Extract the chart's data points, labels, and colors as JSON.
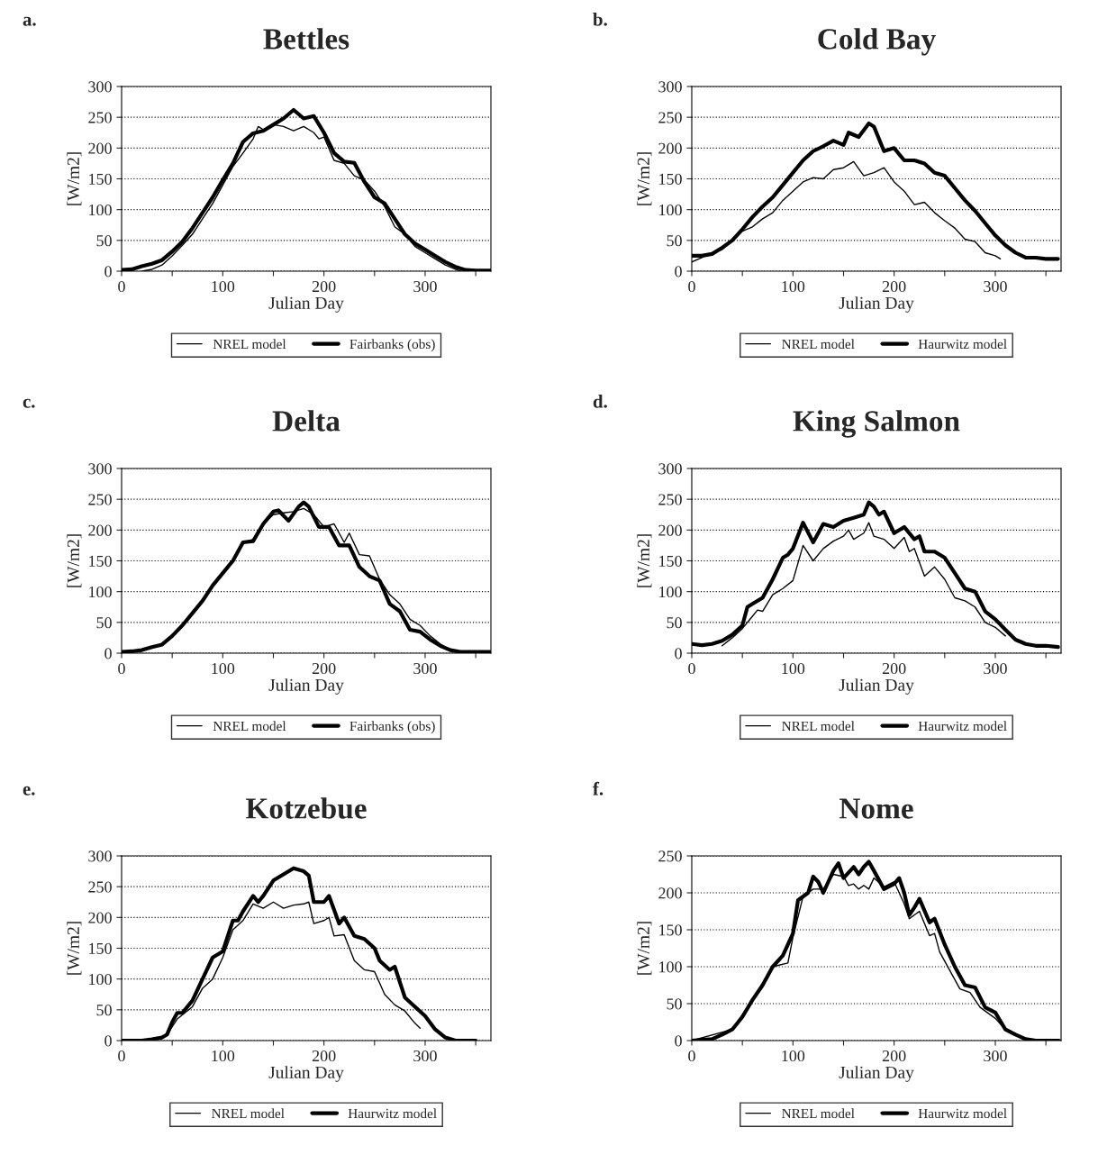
{
  "chart_data": [
    {
      "type": "line",
      "title": "Bettles",
      "annotations": [
        "a."
      ],
      "xlabel": "Julian Day",
      "ylabel": "[W/m2]",
      "xlim": [
        0,
        365
      ],
      "xticks": [
        0,
        {
          "value": 50,
          "label": null
        },
        100,
        {
          "value": 150,
          "label": null
        },
        200,
        {
          "value": 250,
          "label": null
        },
        300,
        {
          "value": 350,
          "label": null
        }
      ],
      "ylim": [
        0,
        300
      ],
      "yticks": [
        0,
        50,
        100,
        150,
        200,
        250,
        300
      ],
      "grid": "y",
      "legend": "bottom",
      "series": [
        {
          "name": "NREL model",
          "color": "#000000",
          "x": [
            20,
            30,
            40,
            50,
            60,
            70,
            80,
            90,
            100,
            110,
            120,
            130,
            135,
            140,
            150,
            160,
            170,
            180,
            190,
            195,
            200,
            210,
            220,
            230,
            240,
            250,
            260,
            270,
            280,
            290,
            300,
            310,
            320,
            330,
            335
          ],
          "values": [
            0,
            3,
            10,
            25,
            42,
            60,
            85,
            110,
            140,
            170,
            192,
            215,
            235,
            230,
            238,
            235,
            228,
            235,
            225,
            215,
            218,
            180,
            175,
            155,
            148,
            130,
            105,
            72,
            60,
            40,
            30,
            20,
            10,
            3,
            0
          ]
        },
        {
          "name": "Fairbanks (obs)",
          "color": "#000000",
          "x": [
            0,
            10,
            20,
            30,
            40,
            50,
            60,
            70,
            80,
            90,
            100,
            110,
            120,
            130,
            140,
            150,
            160,
            170,
            180,
            190,
            200,
            210,
            220,
            230,
            240,
            250,
            260,
            270,
            280,
            290,
            300,
            310,
            320,
            330,
            340,
            350,
            365
          ],
          "values": [
            2,
            3,
            8,
            12,
            18,
            32,
            48,
            70,
            95,
            120,
            148,
            175,
            210,
            224,
            228,
            238,
            248,
            262,
            248,
            252,
            225,
            192,
            178,
            176,
            145,
            120,
            110,
            85,
            60,
            45,
            35,
            25,
            15,
            7,
            2,
            1,
            1
          ]
        }
      ]
    },
    {
      "type": "line",
      "title": "Cold Bay",
      "annotations": [
        "b."
      ],
      "xlabel": "Julian Day",
      "ylabel": "[W/m2]",
      "xlim": [
        0,
        365
      ],
      "xticks": [
        0,
        {
          "value": 50,
          "label": null
        },
        100,
        {
          "value": 150,
          "label": null
        },
        200,
        {
          "value": 250,
          "label": null
        },
        300,
        {
          "value": 350,
          "label": null
        }
      ],
      "ylim": [
        0,
        300
      ],
      "yticks": [
        0,
        50,
        100,
        150,
        200,
        250,
        300
      ],
      "grid": "y",
      "legend": "bottom",
      "series": [
        {
          "name": "NREL model",
          "color": "#000000",
          "x": [
            0,
            10,
            20,
            30,
            40,
            50,
            60,
            70,
            80,
            90,
            100,
            110,
            120,
            130,
            140,
            150,
            160,
            170,
            180,
            190,
            200,
            210,
            220,
            230,
            240,
            250,
            260,
            270,
            280,
            290,
            300,
            305
          ],
          "values": [
            15,
            22,
            30,
            35,
            50,
            65,
            72,
            85,
            95,
            115,
            130,
            145,
            152,
            150,
            165,
            168,
            178,
            155,
            160,
            168,
            145,
            130,
            108,
            112,
            95,
            82,
            70,
            52,
            48,
            30,
            25,
            20
          ]
        },
        {
          "name": "Haurwitz model",
          "color": "#000000",
          "x": [
            0,
            10,
            20,
            30,
            40,
            50,
            60,
            70,
            80,
            90,
            100,
            110,
            120,
            130,
            140,
            150,
            155,
            165,
            175,
            180,
            190,
            200,
            210,
            220,
            230,
            240,
            250,
            260,
            270,
            280,
            290,
            300,
            310,
            320,
            330,
            340,
            350,
            362
          ],
          "values": [
            25,
            25,
            28,
            38,
            50,
            68,
            88,
            105,
            120,
            140,
            160,
            180,
            195,
            203,
            212,
            205,
            225,
            218,
            240,
            235,
            195,
            200,
            180,
            180,
            175,
            160,
            155,
            135,
            115,
            98,
            78,
            58,
            42,
            30,
            22,
            22,
            20,
            20
          ]
        }
      ]
    },
    {
      "type": "line",
      "title": "Delta",
      "annotations": [
        "c."
      ],
      "xlabel": "Julian Day",
      "ylabel": "[W/m2]",
      "xlim": [
        0,
        365
      ],
      "xticks": [
        0,
        {
          "value": 50,
          "label": null
        },
        100,
        {
          "value": 150,
          "label": null
        },
        200,
        {
          "value": 250,
          "label": null
        },
        300,
        {
          "value": 350,
          "label": null
        }
      ],
      "ylim": [
        0,
        300
      ],
      "yticks": [
        0,
        50,
        100,
        150,
        200,
        250,
        300
      ],
      "grid": "y",
      "legend": "bottom",
      "series": [
        {
          "name": "NREL model",
          "color": "#000000",
          "x": [
            0,
            20,
            30,
            40,
            50,
            60,
            70,
            80,
            90,
            100,
            110,
            120,
            130,
            140,
            150,
            160,
            170,
            180,
            190,
            200,
            210,
            220,
            225,
            235,
            245,
            255,
            265,
            275,
            285,
            295,
            305,
            315,
            325,
            335,
            364
          ],
          "values": [
            2,
            5,
            10,
            14,
            28,
            45,
            65,
            85,
            110,
            130,
            150,
            178,
            185,
            210,
            225,
            228,
            230,
            235,
            225,
            205,
            210,
            180,
            195,
            160,
            158,
            120,
            95,
            80,
            55,
            45,
            28,
            15,
            5,
            2,
            2
          ]
        },
        {
          "name": "Fairbanks (obs)",
          "color": "#000000",
          "x": [
            0,
            10,
            20,
            30,
            40,
            50,
            60,
            70,
            80,
            90,
            100,
            110,
            120,
            130,
            140,
            150,
            155,
            165,
            175,
            180,
            185,
            195,
            205,
            215,
            225,
            235,
            245,
            255,
            265,
            275,
            285,
            295,
            305,
            315,
            325,
            335,
            364
          ],
          "values": [
            2,
            3,
            5,
            10,
            14,
            28,
            45,
            65,
            85,
            110,
            130,
            150,
            180,
            182,
            210,
            230,
            232,
            215,
            238,
            245,
            238,
            205,
            205,
            175,
            175,
            140,
            125,
            118,
            80,
            68,
            38,
            35,
            22,
            12,
            5,
            2,
            2
          ]
        }
      ]
    },
    {
      "type": "line",
      "title": "King Salmon",
      "annotations": [
        "d."
      ],
      "xlabel": "Julian Day",
      "ylabel": "[W/m2]",
      "xlim": [
        0,
        365
      ],
      "xticks": [
        0,
        {
          "value": 50,
          "label": null
        },
        100,
        {
          "value": 150,
          "label": null
        },
        200,
        {
          "value": 250,
          "label": null
        },
        300,
        {
          "value": 350,
          "label": null
        }
      ],
      "ylim": [
        0,
        300
      ],
      "yticks": [
        0,
        50,
        100,
        150,
        200,
        250,
        300
      ],
      "grid": "y",
      "legend": "bottom",
      "series": [
        {
          "name": "NREL model",
          "color": "#000000",
          "x": [
            30,
            40,
            50,
            60,
            65,
            70,
            80,
            90,
            100,
            110,
            120,
            130,
            140,
            150,
            155,
            160,
            170,
            175,
            180,
            190,
            200,
            210,
            215,
            220,
            230,
            240,
            250,
            260,
            270,
            280,
            290,
            300,
            310
          ],
          "values": [
            12,
            25,
            40,
            60,
            70,
            68,
            95,
            105,
            118,
            175,
            150,
            170,
            182,
            190,
            200,
            185,
            195,
            212,
            190,
            185,
            170,
            188,
            165,
            170,
            125,
            140,
            120,
            90,
            85,
            75,
            50,
            42,
            28
          ]
        },
        {
          "name": "Haurwitz model",
          "color": "#000000",
          "x": [
            0,
            10,
            20,
            30,
            40,
            50,
            55,
            60,
            70,
            80,
            90,
            95,
            100,
            110,
            120,
            130,
            140,
            150,
            160,
            170,
            175,
            180,
            185,
            190,
            200,
            210,
            220,
            225,
            230,
            240,
            250,
            260,
            270,
            280,
            290,
            300,
            310,
            320,
            330,
            340,
            350,
            362
          ],
          "values": [
            15,
            13,
            15,
            20,
            30,
            45,
            75,
            80,
            90,
            120,
            155,
            160,
            170,
            212,
            180,
            210,
            205,
            215,
            220,
            225,
            245,
            238,
            225,
            230,
            195,
            205,
            185,
            190,
            165,
            165,
            155,
            130,
            105,
            100,
            68,
            55,
            38,
            22,
            15,
            12,
            12,
            10
          ]
        }
      ]
    },
    {
      "type": "line",
      "title": "Kotzebue",
      "annotations": [
        "e."
      ],
      "xlabel": "Julian Day",
      "ylabel": "[W/m2]",
      "xlim": [
        0,
        365
      ],
      "xticks": [
        0,
        {
          "value": 50,
          "label": null
        },
        100,
        {
          "value": 150,
          "label": null
        },
        200,
        {
          "value": 250,
          "label": null
        },
        300,
        {
          "value": 350,
          "label": null
        }
      ],
      "ylim": [
        0,
        300
      ],
      "yticks": [
        0,
        50,
        100,
        150,
        200,
        250,
        300
      ],
      "grid": "y",
      "legend": "bottom",
      "series": [
        {
          "name": "NREL model",
          "color": "#000000",
          "x": [
            45,
            55,
            70,
            80,
            90,
            100,
            110,
            120,
            130,
            140,
            150,
            160,
            170,
            180,
            185,
            190,
            200,
            205,
            210,
            220,
            230,
            240,
            250,
            260,
            270,
            280,
            290,
            295
          ],
          "values": [
            10,
            35,
            55,
            85,
            100,
            135,
            180,
            195,
            222,
            215,
            225,
            215,
            220,
            222,
            225,
            190,
            195,
            200,
            170,
            172,
            130,
            115,
            112,
            75,
            58,
            48,
            28,
            20
          ]
        },
        {
          "name": "Haurwitz model",
          "color": "#000000",
          "x": [
            0,
            20,
            30,
            40,
            45,
            50,
            55,
            60,
            70,
            80,
            90,
            100,
            110,
            115,
            120,
            130,
            135,
            140,
            150,
            160,
            170,
            180,
            185,
            190,
            200,
            205,
            215,
            220,
            230,
            240,
            250,
            255,
            265,
            270,
            280,
            290,
            300,
            310,
            320,
            330,
            350
          ],
          "values": [
            0,
            0,
            2,
            5,
            10,
            30,
            45,
            45,
            65,
            100,
            135,
            145,
            195,
            195,
            210,
            235,
            225,
            235,
            260,
            270,
            280,
            275,
            268,
            225,
            225,
            235,
            190,
            200,
            170,
            165,
            150,
            130,
            115,
            120,
            70,
            55,
            40,
            18,
            5,
            0,
            0
          ]
        }
      ]
    },
    {
      "type": "line",
      "title": "Nome",
      "annotations": [
        "f."
      ],
      "xlabel": "Julian Day",
      "ylabel": "[W/m2]",
      "xlim": [
        0,
        365
      ],
      "xticks": [
        0,
        {
          "value": 50,
          "label": null
        },
        100,
        {
          "value": 150,
          "label": null
        },
        200,
        {
          "value": 250,
          "label": null
        },
        300,
        {
          "value": 350,
          "label": null
        }
      ],
      "ylim": [
        0,
        250
      ],
      "yticks": [
        0,
        50,
        100,
        150,
        200,
        250
      ],
      "grid": "y",
      "legend": "bottom",
      "series": [
        {
          "name": "NREL model",
          "color": "#000000",
          "x": [
            0,
            40,
            60,
            80,
            95,
            100,
            110,
            120,
            130,
            140,
            150,
            155,
            160,
            165,
            170,
            175,
            180,
            190,
            200,
            210,
            215,
            225,
            235,
            240,
            245,
            255,
            265,
            275,
            285,
            300,
            310,
            330,
            363
          ],
          "values": [
            0,
            15,
            55,
            100,
            105,
            140,
            195,
            205,
            205,
            225,
            222,
            210,
            212,
            205,
            210,
            205,
            220,
            208,
            215,
            185,
            165,
            175,
            142,
            145,
            120,
            95,
            70,
            65,
            45,
            30,
            15,
            2,
            0
          ]
        },
        {
          "name": "Haurwitz model",
          "color": "#000000",
          "x": [
            0,
            20,
            30,
            40,
            50,
            60,
            70,
            80,
            90,
            95,
            100,
            105,
            115,
            120,
            125,
            130,
            140,
            145,
            150,
            160,
            165,
            170,
            175,
            180,
            190,
            200,
            205,
            210,
            215,
            220,
            225,
            235,
            240,
            250,
            260,
            270,
            280,
            290,
            300,
            310,
            320,
            330,
            340,
            363
          ],
          "values": [
            0,
            2,
            8,
            15,
            32,
            55,
            75,
            100,
            115,
            130,
            145,
            190,
            200,
            222,
            215,
            200,
            230,
            240,
            220,
            235,
            225,
            235,
            242,
            230,
            205,
            212,
            220,
            200,
            170,
            180,
            192,
            160,
            165,
            130,
            100,
            75,
            72,
            45,
            38,
            15,
            8,
            2,
            0,
            0
          ]
        }
      ]
    }
  ]
}
